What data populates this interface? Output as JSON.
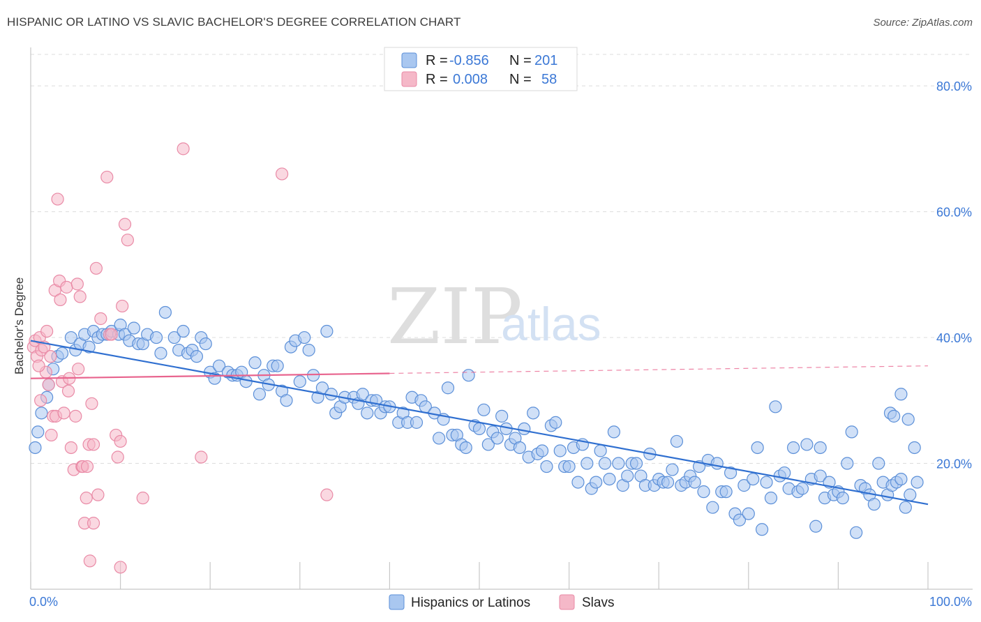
{
  "header": {
    "title": "HISPANIC OR LATINO VS SLAVIC BACHELOR'S DEGREE CORRELATION CHART",
    "source": "Source: ZipAtlas.com"
  },
  "watermark": {
    "zip": "ZIP",
    "atlas": "atlas"
  },
  "legend_top": {
    "rows": [
      {
        "r_label": "R =",
        "r_value": "-0.856",
        "n_label": "N =",
        "n_value": "201",
        "color": "#a9c7f0"
      },
      {
        "r_label": "R =",
        "r_value": "0.008",
        "n_label": "N =",
        "n_value": "58",
        "color": "#f5b8c8"
      }
    ]
  },
  "legend_bottom": [
    {
      "label": "Hispanics or Latinos",
      "color": "#a9c7f0"
    },
    {
      "label": "Slavs",
      "color": "#f5b8c8"
    }
  ],
  "chart_data": {
    "type": "scatter",
    "title": "HISPANIC OR LATINO VS SLAVIC BACHELOR'S DEGREE CORRELATION CHART",
    "xlabel": "",
    "ylabel": "Bachelor's Degree",
    "xlim": [
      0,
      100
    ],
    "ylim": [
      0,
      85
    ],
    "x_tick_labels": [
      "0.0%",
      "100.0%"
    ],
    "y_ticks": [
      20,
      40,
      60,
      80
    ],
    "y_tick_labels": [
      "20.0%",
      "40.0%",
      "60.0%",
      "80.0%"
    ],
    "grid": true,
    "legend_position": "top-center",
    "colors": {
      "blue_fill": "#a9c7f0",
      "blue_stroke": "#5b8fd8",
      "blue_line": "#2f6fd0",
      "pink_fill": "#f5b8c8",
      "pink_stroke": "#e98aa6",
      "pink_line": "#e8648e"
    },
    "series": [
      {
        "name": "Hispanics or Latinos",
        "trend": {
          "x0": 0,
          "y0": 39.5,
          "x1": 100,
          "y1": 13.5,
          "dashed_from": null
        },
        "points": [
          [
            0.5,
            22.5
          ],
          [
            0.8,
            25
          ],
          [
            1.2,
            28
          ],
          [
            1.8,
            30.5
          ],
          [
            2,
            32.5
          ],
          [
            2.5,
            35
          ],
          [
            3,
            37
          ],
          [
            3.5,
            37.5
          ],
          [
            4.5,
            40
          ],
          [
            5,
            38
          ],
          [
            5.5,
            39
          ],
          [
            6,
            40.5
          ],
          [
            6.5,
            38.5
          ],
          [
            7,
            41
          ],
          [
            7.5,
            40
          ],
          [
            8,
            40.5
          ],
          [
            8.5,
            40.5
          ],
          [
            9,
            41
          ],
          [
            9.8,
            40.5
          ],
          [
            10,
            42
          ],
          [
            10.5,
            40.5
          ],
          [
            11,
            39.5
          ],
          [
            11.5,
            41.5
          ],
          [
            12,
            39
          ],
          [
            12.5,
            39
          ],
          [
            13,
            40.5
          ],
          [
            14,
            40
          ],
          [
            14.5,
            37.5
          ],
          [
            15,
            44
          ],
          [
            16,
            40
          ],
          [
            16.5,
            38
          ],
          [
            17,
            41
          ],
          [
            17.5,
            37.5
          ],
          [
            18,
            38
          ],
          [
            18.5,
            37
          ],
          [
            19,
            40
          ],
          [
            19.5,
            39
          ],
          [
            20,
            34.5
          ],
          [
            20.5,
            33.5
          ],
          [
            21,
            35.5
          ],
          [
            22,
            34.5
          ],
          [
            22.5,
            34
          ],
          [
            23,
            34
          ],
          [
            23.5,
            34.5
          ],
          [
            24,
            33
          ],
          [
            25,
            36
          ],
          [
            25.5,
            31
          ],
          [
            26,
            34
          ],
          [
            26.5,
            32.5
          ],
          [
            27,
            35.5
          ],
          [
            27.5,
            35.5
          ],
          [
            28,
            31.5
          ],
          [
            28.5,
            30
          ],
          [
            29,
            38.5
          ],
          [
            29.5,
            39.5
          ],
          [
            30,
            33
          ],
          [
            30.5,
            40
          ],
          [
            31,
            38
          ],
          [
            31.5,
            34
          ],
          [
            32,
            30.5
          ],
          [
            32.5,
            32
          ],
          [
            33,
            41
          ],
          [
            33.5,
            31
          ],
          [
            34,
            28
          ],
          [
            34.5,
            29
          ],
          [
            35,
            30.5
          ],
          [
            36,
            30.5
          ],
          [
            36.5,
            29.5
          ],
          [
            37,
            31
          ],
          [
            37.5,
            28
          ],
          [
            38,
            30
          ],
          [
            38.5,
            30
          ],
          [
            39,
            28
          ],
          [
            39.5,
            29
          ],
          [
            40,
            29
          ],
          [
            41,
            26.5
          ],
          [
            41.5,
            28
          ],
          [
            42,
            26.5
          ],
          [
            42.5,
            30.5
          ],
          [
            43,
            26.5
          ],
          [
            43.5,
            30
          ],
          [
            44,
            29
          ],
          [
            45,
            28
          ],
          [
            45.5,
            24
          ],
          [
            46,
            27
          ],
          [
            46.5,
            32
          ],
          [
            47,
            24.5
          ],
          [
            47.5,
            24.5
          ],
          [
            48,
            23
          ],
          [
            48.5,
            22.5
          ],
          [
            48.8,
            34
          ],
          [
            49.5,
            26
          ],
          [
            50,
            25.5
          ],
          [
            50.5,
            28.5
          ],
          [
            51,
            23
          ],
          [
            51.5,
            25
          ],
          [
            52,
            24
          ],
          [
            52.5,
            27.5
          ],
          [
            53,
            25.5
          ],
          [
            53.5,
            23
          ],
          [
            54,
            24
          ],
          [
            54.5,
            22.5
          ],
          [
            55,
            25.5
          ],
          [
            55.5,
            21
          ],
          [
            56,
            28
          ],
          [
            56.5,
            21.5
          ],
          [
            57,
            22
          ],
          [
            57.5,
            19.5
          ],
          [
            58,
            26
          ],
          [
            58.5,
            26.5
          ],
          [
            59,
            22
          ],
          [
            59.5,
            19.5
          ],
          [
            60,
            19.5
          ],
          [
            60.5,
            22.5
          ],
          [
            61,
            17
          ],
          [
            61.5,
            23
          ],
          [
            62,
            20
          ],
          [
            62.5,
            16
          ],
          [
            63,
            17
          ],
          [
            63.5,
            22
          ],
          [
            64,
            20
          ],
          [
            64.5,
            17.5
          ],
          [
            65,
            25
          ],
          [
            65.5,
            20
          ],
          [
            66,
            16.5
          ],
          [
            66.5,
            18
          ],
          [
            67,
            20
          ],
          [
            67.5,
            20
          ],
          [
            68,
            18
          ],
          [
            68.5,
            16.5
          ],
          [
            69,
            21.5
          ],
          [
            69.5,
            16.5
          ],
          [
            70,
            17.5
          ],
          [
            70.5,
            17
          ],
          [
            71,
            17
          ],
          [
            71.5,
            19
          ],
          [
            72,
            23.5
          ],
          [
            72.5,
            16.5
          ],
          [
            73,
            17
          ],
          [
            73.5,
            18
          ],
          [
            74,
            17
          ],
          [
            74.5,
            19.5
          ],
          [
            75,
            15.5
          ],
          [
            75.5,
            20.5
          ],
          [
            76,
            13
          ],
          [
            76.5,
            20
          ],
          [
            77,
            15.5
          ],
          [
            77.5,
            15.5
          ],
          [
            78,
            18.5
          ],
          [
            78.5,
            12
          ],
          [
            79,
            11
          ],
          [
            79.5,
            16.5
          ],
          [
            80,
            12
          ],
          [
            80.5,
            17.5
          ],
          [
            81,
            22.5
          ],
          [
            81.5,
            9.5
          ],
          [
            82,
            17
          ],
          [
            82.5,
            14.5
          ],
          [
            83,
            29
          ],
          [
            83.5,
            18
          ],
          [
            84,
            18.5
          ],
          [
            84.5,
            16
          ],
          [
            85,
            22.5
          ],
          [
            85.5,
            15.5
          ],
          [
            86,
            16
          ],
          [
            86.5,
            23
          ],
          [
            87,
            17.5
          ],
          [
            87.5,
            10
          ],
          [
            88,
            18
          ],
          [
            88.5,
            14.5
          ],
          [
            89,
            17
          ],
          [
            89.5,
            15
          ],
          [
            90,
            15.5
          ],
          [
            90.5,
            14.5
          ],
          [
            91,
            20
          ],
          [
            91.5,
            25
          ],
          [
            92,
            9
          ],
          [
            92.5,
            16.5
          ],
          [
            93,
            16
          ],
          [
            93.5,
            15
          ],
          [
            94,
            13.5
          ],
          [
            94.5,
            20
          ],
          [
            95,
            17
          ],
          [
            95.5,
            15
          ],
          [
            96,
            16.5
          ],
          [
            96.5,
            17
          ],
          [
            97,
            17.5
          ],
          [
            97.5,
            13
          ],
          [
            98,
            15
          ],
          [
            98.5,
            22.5
          ],
          [
            98.8,
            17
          ],
          [
            95.8,
            28
          ],
          [
            96.2,
            27.5
          ],
          [
            97,
            31
          ],
          [
            97.8,
            27
          ],
          [
            88,
            22.5
          ]
        ]
      },
      {
        "name": "Slavs",
        "trend": {
          "x0": 0,
          "y0": 33.5,
          "x1": 100,
          "y1": 35.5,
          "dashed_from": 40
        },
        "points": [
          [
            0.3,
            38.5
          ],
          [
            0.5,
            39.5
          ],
          [
            0.7,
            37
          ],
          [
            1,
            40
          ],
          [
            1.2,
            38
          ],
          [
            1.5,
            38.5
          ],
          [
            1.7,
            34.5
          ],
          [
            1.8,
            41
          ],
          [
            2,
            32.5
          ],
          [
            2.2,
            37
          ],
          [
            2.3,
            24.5
          ],
          [
            2.5,
            27.5
          ],
          [
            2.7,
            47.5
          ],
          [
            2.8,
            27.5
          ],
          [
            3,
            62
          ],
          [
            3.2,
            49
          ],
          [
            3.3,
            46
          ],
          [
            3.5,
            33
          ],
          [
            3.7,
            28
          ],
          [
            4,
            48
          ],
          [
            4.2,
            31.5
          ],
          [
            4.3,
            33.5
          ],
          [
            4.5,
            22.5
          ],
          [
            4.8,
            19
          ],
          [
            5,
            27.5
          ],
          [
            5.2,
            48.5
          ],
          [
            5.3,
            35
          ],
          [
            5.5,
            46.5
          ],
          [
            5.7,
            19.5
          ],
          [
            5.8,
            19.5
          ],
          [
            6,
            10.5
          ],
          [
            6.2,
            14.5
          ],
          [
            6.3,
            19.5
          ],
          [
            6.5,
            23
          ],
          [
            6.6,
            4.5
          ],
          [
            6.8,
            29.5
          ],
          [
            7,
            23
          ],
          [
            7,
            10.5
          ],
          [
            7.3,
            51
          ],
          [
            7.5,
            15
          ],
          [
            7.8,
            43
          ],
          [
            8.5,
            65.5
          ],
          [
            8.8,
            40.5
          ],
          [
            9,
            40.5
          ],
          [
            9.5,
            24.5
          ],
          [
            9.7,
            21
          ],
          [
            10,
            23.5
          ],
          [
            10,
            3.5
          ],
          [
            10.2,
            45
          ],
          [
            10.5,
            58
          ],
          [
            10.8,
            55.5
          ],
          [
            12.5,
            14.5
          ],
          [
            17,
            70
          ],
          [
            19,
            21
          ],
          [
            28,
            66
          ],
          [
            33,
            15
          ],
          [
            1.1,
            30
          ],
          [
            0.9,
            35.5
          ]
        ]
      }
    ]
  }
}
